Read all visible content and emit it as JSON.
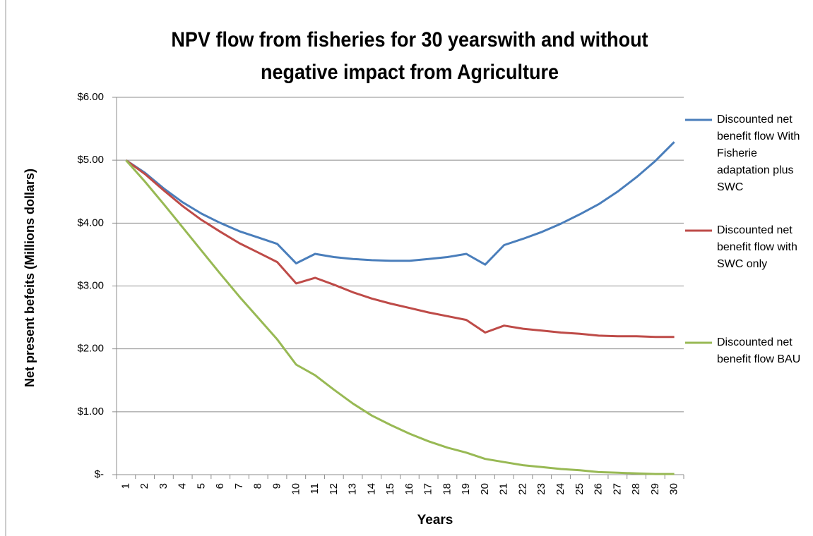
{
  "chart_data": {
    "type": "line",
    "title": "NPV flow from fisheries for 30 yearswith and without negative impact from Agriculture",
    "x_label": "Years",
    "y_label": "Net present befeits (Millions dollars)",
    "categories": [
      "1",
      "2",
      "3",
      "4",
      "5",
      "6",
      "7",
      "8",
      "9",
      "10",
      "11",
      "12",
      "13",
      "14",
      "15",
      "16",
      "17",
      "18",
      "19",
      "20",
      "21",
      "22",
      "23",
      "24",
      "25",
      "26",
      "27",
      "28",
      "29",
      "30"
    ],
    "series": [
      {
        "name": "Discounted net benefit flow With Fisherie adaptation plus SWC",
        "color": "#4a7ebb",
        "values": [
          5.0,
          4.8,
          4.55,
          4.33,
          4.15,
          4.0,
          3.87,
          3.77,
          3.67,
          3.36,
          3.51,
          3.46,
          3.43,
          3.41,
          3.4,
          3.4,
          3.43,
          3.46,
          3.51,
          3.34,
          3.65,
          3.75,
          3.86,
          3.99,
          4.14,
          4.3,
          4.5,
          4.73,
          4.99,
          5.29
        ]
      },
      {
        "name": "Discounted net benefit flow with SWC only",
        "color": "#be4b48",
        "values": [
          5.0,
          4.78,
          4.52,
          4.27,
          4.05,
          3.86,
          3.68,
          3.53,
          3.38,
          3.04,
          3.13,
          3.02,
          2.9,
          2.8,
          2.72,
          2.65,
          2.58,
          2.52,
          2.46,
          2.26,
          2.37,
          2.32,
          2.29,
          2.26,
          2.24,
          2.21,
          2.2,
          2.2,
          2.19,
          2.19
        ]
      },
      {
        "name": "Discounted net benefit flow BAU",
        "color": "#98b954",
        "values": [
          5.0,
          4.66,
          4.3,
          3.93,
          3.56,
          3.19,
          2.83,
          2.49,
          2.15,
          1.75,
          1.58,
          1.35,
          1.13,
          0.94,
          0.79,
          0.65,
          0.53,
          0.43,
          0.35,
          0.25,
          0.2,
          0.15,
          0.12,
          0.09,
          0.07,
          0.04,
          0.03,
          0.02,
          0.01,
          0.01
        ]
      }
    ],
    "ylim": [
      0,
      6
    ],
    "yticks": [
      {
        "value": 0,
        "label": "$-"
      },
      {
        "value": 1,
        "label": "$1.00"
      },
      {
        "value": 2,
        "label": "$2.00"
      },
      {
        "value": 3,
        "label": "$3.00"
      },
      {
        "value": 4,
        "label": "$4.00"
      },
      {
        "value": 5,
        "label": "$5.00"
      },
      {
        "value": 6,
        "label": "$6.00"
      }
    ],
    "grid": true,
    "legend": "right"
  }
}
